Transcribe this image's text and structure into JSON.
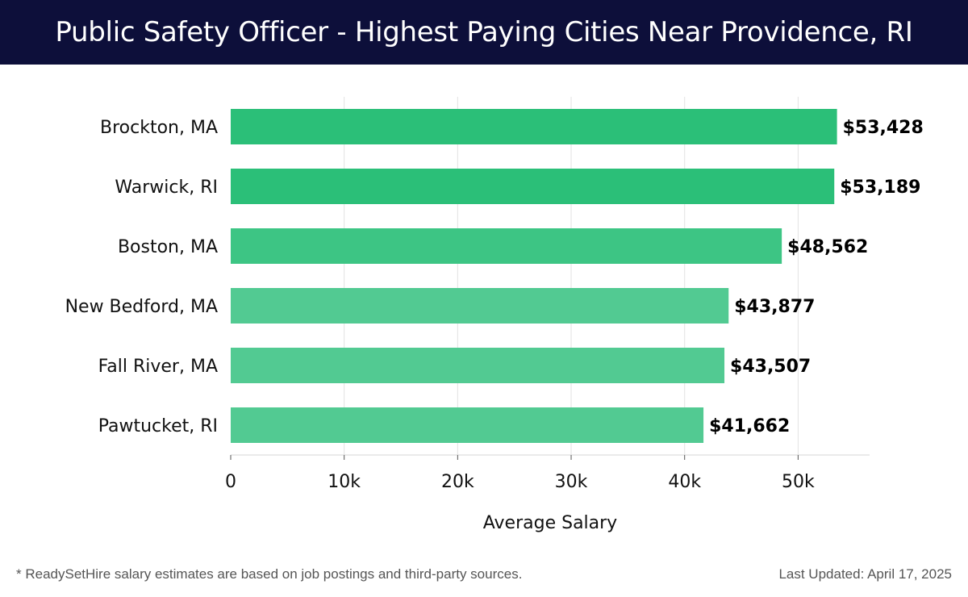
{
  "header": {
    "title": "Public Safety Officer - Highest Paying Cities Near Providence, RI"
  },
  "chart_data": {
    "type": "bar",
    "orientation": "horizontal",
    "title": "Public Safety Officer - Highest Paying Cities Near Providence, RI",
    "categories": [
      "Brockton, MA",
      "Warwick, RI",
      "Boston, MA",
      "New Bedford, MA",
      "Fall River, MA",
      "Pawtucket, RI"
    ],
    "values": [
      53428,
      53189,
      48562,
      43877,
      43507,
      41662
    ],
    "data_labels": [
      "$53,428",
      "$53,189",
      "$48,562",
      "$43,877",
      "$43,507",
      "$41,662"
    ],
    "xlabel": "Average Salary",
    "ylabel": "",
    "xlim": [
      0,
      56300
    ],
    "xticks": [
      0,
      10000,
      20000,
      30000,
      40000,
      50000
    ],
    "xtick_labels": [
      "0",
      "10k",
      "20k",
      "30k",
      "40k",
      "50k"
    ],
    "grid": true,
    "colors": [
      "#2bbf78",
      "#2bbf78",
      "#3dc584",
      "#52ca92",
      "#52ca92",
      "#52ca92"
    ]
  },
  "footer": {
    "note": "* ReadySetHire salary estimates are based on job postings and third-party sources.",
    "updated": "Last Updated: April 17, 2025"
  }
}
